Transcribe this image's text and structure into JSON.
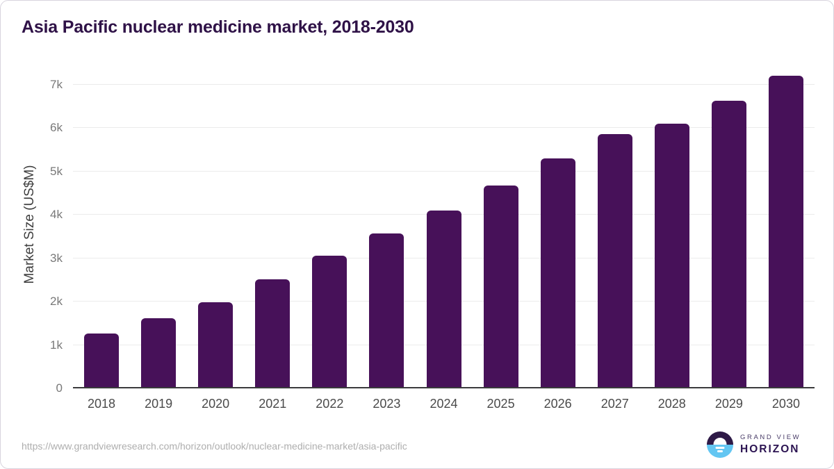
{
  "chart_data": {
    "type": "bar",
    "title": "Asia Pacific nuclear medicine market, 2018-2030",
    "categories": [
      "2018",
      "2019",
      "2020",
      "2021",
      "2022",
      "2023",
      "2024",
      "2025",
      "2026",
      "2027",
      "2028",
      "2029",
      "2030"
    ],
    "values": [
      1230,
      1580,
      1960,
      2480,
      3030,
      3530,
      4070,
      4640,
      5260,
      5830,
      6060,
      6600,
      7170
    ],
    "xlabel": "",
    "ylabel": "Market Size (US$M)",
    "ylim": [
      0,
      7000
    ],
    "y_tick_values": [
      0,
      1000,
      2000,
      3000,
      4000,
      5000,
      6000,
      7000
    ],
    "y_tick_labels": [
      "0",
      "1k",
      "2k",
      "3k",
      "4k",
      "5k",
      "6k",
      "7k"
    ],
    "grid": "horizontal",
    "legend": "none",
    "bar_color": "#471159",
    "gridline_color": "#ebebeb",
    "axis_line_color": "#3a3a3c"
  },
  "footer": {
    "source_url": "https://www.grandviewresearch.com/horizon/outlook/nuclear-medicine-market/asia-pacific",
    "logo": {
      "brand_line1": "GRAND VIEW",
      "brand_line2": "HORIZON",
      "purple": "#2E1A47",
      "blue": "#63C6F2"
    }
  }
}
